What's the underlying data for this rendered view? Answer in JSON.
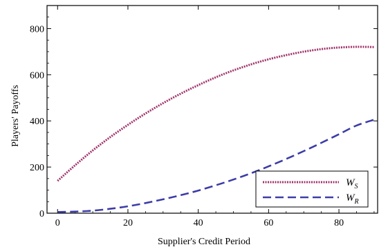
{
  "chart_data": {
    "type": "line",
    "xlabel": "Supplier's Credit Period",
    "ylabel": "Players' Payoffs",
    "xlim": [
      -3,
      91
    ],
    "ylim": [
      0,
      900
    ],
    "x_ticks": [
      0,
      20,
      40,
      60,
      80
    ],
    "y_ticks": [
      0,
      200,
      400,
      600,
      800
    ],
    "grid": false,
    "legend_position": "bottom-right",
    "series": [
      {
        "name": "W_S",
        "name_main": "W",
        "name_sub": "S",
        "color": "#a0336b",
        "style": "dotted",
        "x": [
          0,
          5,
          10,
          15,
          20,
          25,
          30,
          35,
          40,
          45,
          50,
          55,
          60,
          65,
          70,
          75,
          80,
          85,
          90
        ],
        "values": [
          140,
          208,
          272,
          330,
          383,
          432,
          477,
          518,
          555,
          589,
          619,
          645,
          667,
          685,
          700,
          711,
          718,
          721,
          720
        ]
      },
      {
        "name": "W_R",
        "name_main": "W",
        "name_sub": "R",
        "color": "#3c3ca8",
        "style": "dashed",
        "x": [
          0,
          5,
          10,
          15,
          20,
          25,
          30,
          35,
          40,
          45,
          50,
          55,
          60,
          65,
          70,
          75,
          80,
          85,
          90
        ],
        "values": [
          5,
          7,
          11,
          19,
          30,
          44,
          60,
          78,
          98,
          121,
          146,
          173,
          203,
          235,
          269,
          305,
          342,
          380,
          405
        ]
      }
    ]
  }
}
